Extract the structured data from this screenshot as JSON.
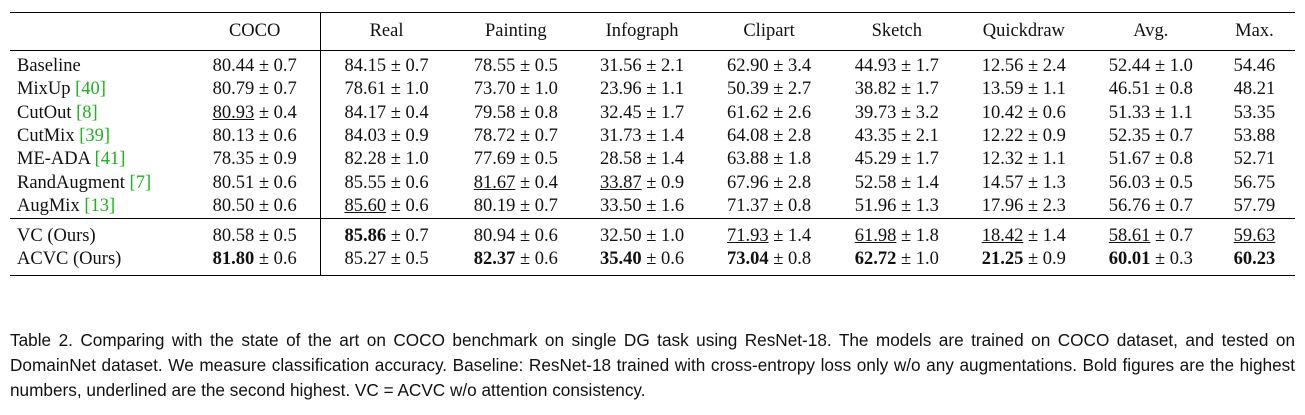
{
  "table": {
    "header": [
      "COCO",
      "Real",
      "Painting",
      "Infograph",
      "Clipart",
      "Sketch",
      "Quickdraw",
      "Avg.",
      "Max."
    ],
    "rows": [
      {
        "name": "Baseline",
        "cells": [
          [
            "80.44",
            "± 0.7"
          ],
          [
            "84.15",
            "± 0.7"
          ],
          [
            "78.55",
            "± 0.5"
          ],
          [
            "31.56",
            "± 2.1"
          ],
          [
            "62.90",
            "± 3.4"
          ],
          [
            "44.93",
            "± 1.7"
          ],
          [
            "12.56",
            "± 2.4"
          ],
          [
            "52.44",
            "± 1.0"
          ],
          [
            "54.46"
          ]
        ]
      },
      {
        "name": "MixUp",
        "ref": "[40]",
        "cells": [
          [
            "80.79",
            "± 0.7"
          ],
          [
            "78.61",
            "± 1.0"
          ],
          [
            "73.70",
            "± 1.0"
          ],
          [
            "23.96",
            "± 1.1"
          ],
          [
            "50.39",
            "± 2.7"
          ],
          [
            "38.82",
            "± 1.7"
          ],
          [
            "13.59",
            "± 1.1"
          ],
          [
            "46.51",
            "± 0.8"
          ],
          [
            "48.21"
          ]
        ]
      },
      {
        "name": "CutOut",
        "ref": "[8]",
        "cells": [
          [
            "80.93",
            "± 0.4",
            "u"
          ],
          [
            "84.17",
            "± 0.4"
          ],
          [
            "79.58",
            "± 0.8"
          ],
          [
            "32.45",
            "± 1.7"
          ],
          [
            "61.62",
            "± 2.6"
          ],
          [
            "39.73",
            "± 3.2"
          ],
          [
            "10.42",
            "± 0.6"
          ],
          [
            "51.33",
            "± 1.1"
          ],
          [
            "53.35"
          ]
        ]
      },
      {
        "name": "CutMix",
        "ref": "[39]",
        "cells": [
          [
            "80.13",
            "± 0.6"
          ],
          [
            "84.03",
            "± 0.9"
          ],
          [
            "78.72",
            "± 0.7"
          ],
          [
            "31.73",
            "± 1.4"
          ],
          [
            "64.08",
            "± 2.8"
          ],
          [
            "43.35",
            "± 2.1"
          ],
          [
            "12.22",
            "± 0.9"
          ],
          [
            "52.35",
            "± 0.7"
          ],
          [
            "53.88"
          ]
        ]
      },
      {
        "name": "ME-ADA",
        "ref": "[41]",
        "cells": [
          [
            "78.35",
            "± 0.9"
          ],
          [
            "82.28",
            "± 1.0"
          ],
          [
            "77.69",
            "± 0.5"
          ],
          [
            "28.58",
            "± 1.4"
          ],
          [
            "63.88",
            "± 1.8"
          ],
          [
            "45.29",
            "± 1.7"
          ],
          [
            "12.32",
            "± 1.1"
          ],
          [
            "51.67",
            "± 0.8"
          ],
          [
            "52.71"
          ]
        ]
      },
      {
        "name": "RandAugment",
        "ref": "[7]",
        "cells": [
          [
            "80.51",
            "± 0.6"
          ],
          [
            "85.55",
            "± 0.6"
          ],
          [
            "81.67",
            "± 0.4",
            "u"
          ],
          [
            "33.87",
            "± 0.9",
            "u"
          ],
          [
            "67.96",
            "± 2.8"
          ],
          [
            "52.58",
            "± 1.4"
          ],
          [
            "14.57",
            "± 1.3"
          ],
          [
            "56.03",
            "± 0.5"
          ],
          [
            "56.75"
          ]
        ]
      },
      {
        "name": "AugMix",
        "ref": "[13]",
        "cells": [
          [
            "80.50",
            "± 0.6"
          ],
          [
            "85.60",
            "± 0.6",
            "u"
          ],
          [
            "80.19",
            "± 0.7"
          ],
          [
            "33.50",
            "± 1.6"
          ],
          [
            "71.37",
            "± 0.8"
          ],
          [
            "51.96",
            "± 1.3"
          ],
          [
            "17.96",
            "± 2.3"
          ],
          [
            "56.76",
            "± 0.7"
          ],
          [
            "57.79"
          ]
        ]
      }
    ],
    "ours": [
      {
        "name": "VC (Ours)",
        "cells": [
          [
            "80.58",
            "± 0.5"
          ],
          [
            "85.86",
            "± 0.7",
            "b"
          ],
          [
            "80.94",
            "± 0.6"
          ],
          [
            "32.50",
            "± 1.0"
          ],
          [
            "71.93",
            "± 1.4",
            "u"
          ],
          [
            "61.98",
            "± 1.8",
            "u"
          ],
          [
            "18.42",
            "± 1.4",
            "u"
          ],
          [
            "58.61",
            "± 0.7",
            "u"
          ],
          [
            "59.63",
            "",
            "u"
          ]
        ]
      },
      {
        "name": "ACVC (Ours)",
        "cells": [
          [
            "81.80",
            "± 0.6",
            "b"
          ],
          [
            "85.27",
            "± 0.5"
          ],
          [
            "82.37",
            "± 0.6",
            "b"
          ],
          [
            "35.40",
            "± 0.6",
            "b"
          ],
          [
            "73.04",
            "± 0.8",
            "b"
          ],
          [
            "62.72",
            "± 1.0",
            "b"
          ],
          [
            "21.25",
            "± 0.9",
            "b"
          ],
          [
            "60.01",
            "± 0.3",
            "b"
          ],
          [
            "60.23",
            "",
            "b"
          ]
        ]
      }
    ],
    "caption": "Table 2. Comparing with the state of the art on COCO benchmark on single DG task using ResNet-18. The models are trained on COCO dataset, and tested on DomainNet dataset. We measure classification accuracy. Baseline: ResNet-18 trained with cross-entropy loss only w/o any augmentations. Bold figures are the highest numbers, underlined are the second highest. VC = ACVC w/o attention consistency."
  }
}
